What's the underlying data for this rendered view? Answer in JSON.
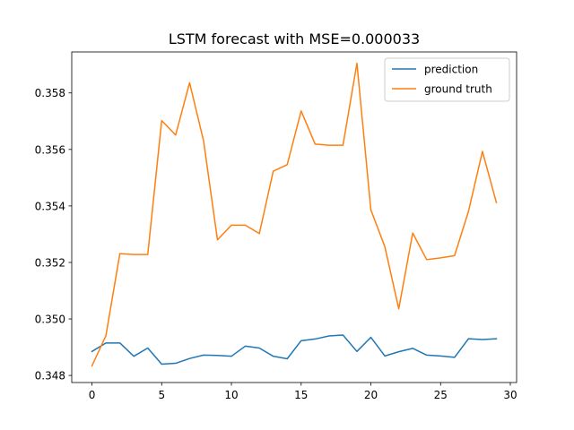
{
  "chart_data": {
    "type": "line",
    "title": "LSTM forecast with MSE=0.000033",
    "xlabel": "",
    "ylabel": "",
    "xlim": [
      -1.45,
      30.45
    ],
    "ylim": [
      0.34775,
      0.35945
    ],
    "x": [
      0,
      1,
      2,
      3,
      4,
      5,
      6,
      7,
      8,
      9,
      10,
      11,
      12,
      13,
      14,
      15,
      16,
      17,
      18,
      19,
      20,
      21,
      22,
      23,
      24,
      25,
      26,
      27,
      28,
      29
    ],
    "x_ticks": [
      0,
      5,
      10,
      15,
      20,
      25,
      30
    ],
    "x_tick_labels": [
      "0",
      "5",
      "10",
      "15",
      "20",
      "25",
      "30"
    ],
    "y_ticks": [
      0.348,
      0.35,
      0.352,
      0.354,
      0.356,
      0.358
    ],
    "y_tick_labels": [
      "0.348",
      "0.350",
      "0.352",
      "0.354",
      "0.356",
      "0.358"
    ],
    "grid": false,
    "legend_position": "top-right",
    "series": [
      {
        "name": "prediction",
        "color": "#1f77b4",
        "values": [
          0.34885,
          0.34915,
          0.34915,
          0.34868,
          0.34897,
          0.3484,
          0.34843,
          0.3486,
          0.34872,
          0.34871,
          0.34868,
          0.34904,
          0.34897,
          0.34868,
          0.34859,
          0.34923,
          0.34929,
          0.3494,
          0.34943,
          0.34885,
          0.34935,
          0.34869,
          0.34884,
          0.34896,
          0.34872,
          0.34869,
          0.34864,
          0.3493,
          0.34927,
          0.3493
        ]
      },
      {
        "name": "ground truth",
        "color": "#ff7f0e",
        "values": [
          0.34834,
          0.34941,
          0.35231,
          0.35228,
          0.35228,
          0.35702,
          0.35651,
          0.35836,
          0.35631,
          0.3528,
          0.35332,
          0.35332,
          0.35302,
          0.35523,
          0.35546,
          0.35736,
          0.35619,
          0.35615,
          0.35615,
          0.35905,
          0.35386,
          0.35256,
          0.35036,
          0.35304,
          0.3521,
          0.35216,
          0.35224,
          0.35381,
          0.35593,
          0.35412
        ]
      }
    ]
  }
}
